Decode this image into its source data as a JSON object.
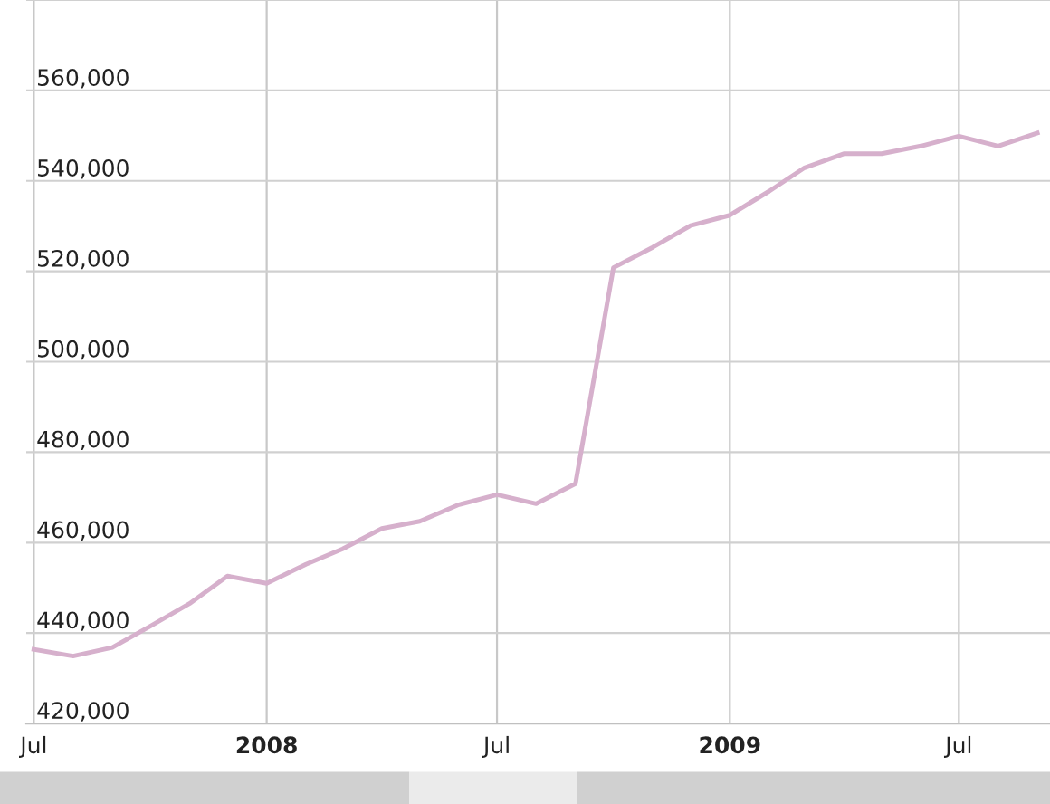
{
  "chart_data": {
    "type": "line",
    "x": [
      "2007-07-01",
      "2007-08-01",
      "2007-09-01",
      "2007-10-01",
      "2007-11-01",
      "2007-12-01",
      "2008-01-01",
      "2008-02-01",
      "2008-03-01",
      "2008-04-01",
      "2008-05-01",
      "2008-06-01",
      "2008-07-01",
      "2008-08-01",
      "2008-09-01",
      "2008-10-01",
      "2008-11-01",
      "2008-12-01",
      "2009-01-01",
      "2009-02-01",
      "2009-03-01",
      "2009-04-01",
      "2009-05-01",
      "2009-06-01",
      "2009-07-01",
      "2009-08-01",
      "2009-09-01"
    ],
    "series": [
      {
        "color": "#d6b0cc",
        "values": [
          436400,
          434900,
          436800,
          441500,
          446500,
          452600,
          451000,
          455200,
          458600,
          463100,
          464700,
          468400,
          470600,
          468600,
          473000,
          520800,
          525300,
          530100,
          532400,
          537700,
          542900,
          546000,
          546000,
          547700,
          549900,
          547700,
          550600
        ]
      }
    ],
    "xlim": [
      "2007-06-25",
      "2009-09-11"
    ],
    "xticks": [
      {
        "value": "2007-07-01",
        "label": "Jul"
      },
      {
        "value": "2008-01-01",
        "label": "2008"
      },
      {
        "value": "2008-07-01",
        "label": "Jul"
      },
      {
        "value": "2009-01-01",
        "label": "2009"
      },
      {
        "value": "2009-07-01",
        "label": "Jul"
      }
    ],
    "ylim": [
      420000,
      580000
    ],
    "yticks": [
      {
        "value": 420000,
        "label": "420,000"
      },
      {
        "value": 440000,
        "label": "440,000"
      },
      {
        "value": 460000,
        "label": "460,000"
      },
      {
        "value": 480000,
        "label": "480,000"
      },
      {
        "value": 500000,
        "label": "500,000"
      },
      {
        "value": 520000,
        "label": "520,000"
      },
      {
        "value": 540000,
        "label": "540,000"
      },
      {
        "value": 560000,
        "label": "560,000"
      },
      {
        "value": 580000,
        "label": null
      }
    ],
    "grid": true,
    "marker": "none",
    "line_style": "solid"
  }
}
